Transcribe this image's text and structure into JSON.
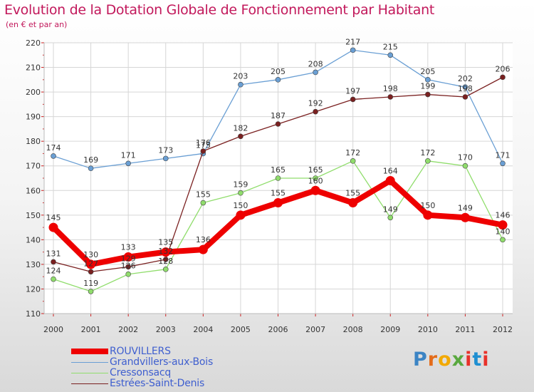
{
  "header": {
    "title": "Evolution de la Dotation Globale de Fonctionnement par Habitant",
    "subtitle": "(en € et par an)"
  },
  "logo": {
    "p": "P",
    "r": "r",
    "o": "o",
    "x": "x",
    "i": "i",
    "t": "t",
    "i2": "i"
  },
  "chart_data": {
    "type": "line",
    "title": "Evolution de la Dotation Globale de Fonctionnement par Habitant",
    "subtitle": "(en € et par an)",
    "xlabel": "",
    "ylabel": "",
    "x": [
      "2000",
      "2001",
      "2002",
      "2003",
      "2004",
      "2005",
      "2006",
      "2007",
      "2008",
      "2009",
      "2010",
      "2011",
      "2012"
    ],
    "ylim": [
      110,
      220
    ],
    "yticks": [
      110,
      120,
      130,
      140,
      150,
      160,
      170,
      180,
      190,
      200,
      210,
      220
    ],
    "grid": true,
    "legend_position": "bottom-left",
    "series": [
      {
        "name": "ROUVILLERS",
        "color": "#ee0000",
        "values": [
          145,
          130,
          133,
          135,
          136,
          150,
          155,
          160,
          155,
          164,
          150,
          149,
          146
        ]
      },
      {
        "name": "Grandvillers-aux-Bois",
        "color": "#6a9fd4",
        "values": [
          174,
          169,
          171,
          173,
          175,
          203,
          205,
          208,
          217,
          215,
          205,
          202,
          171
        ]
      },
      {
        "name": "Cressonsacq",
        "color": "#90dd6c",
        "values": [
          124,
          119,
          126,
          128,
          155,
          159,
          165,
          165,
          172,
          149,
          172,
          170,
          140
        ]
      },
      {
        "name": "Estrées-Saint-Denis",
        "color": "#7a2020",
        "values": [
          131,
          127,
          129,
          132,
          176,
          182,
          187,
          192,
          197,
          198,
          199,
          198,
          206
        ]
      }
    ]
  }
}
